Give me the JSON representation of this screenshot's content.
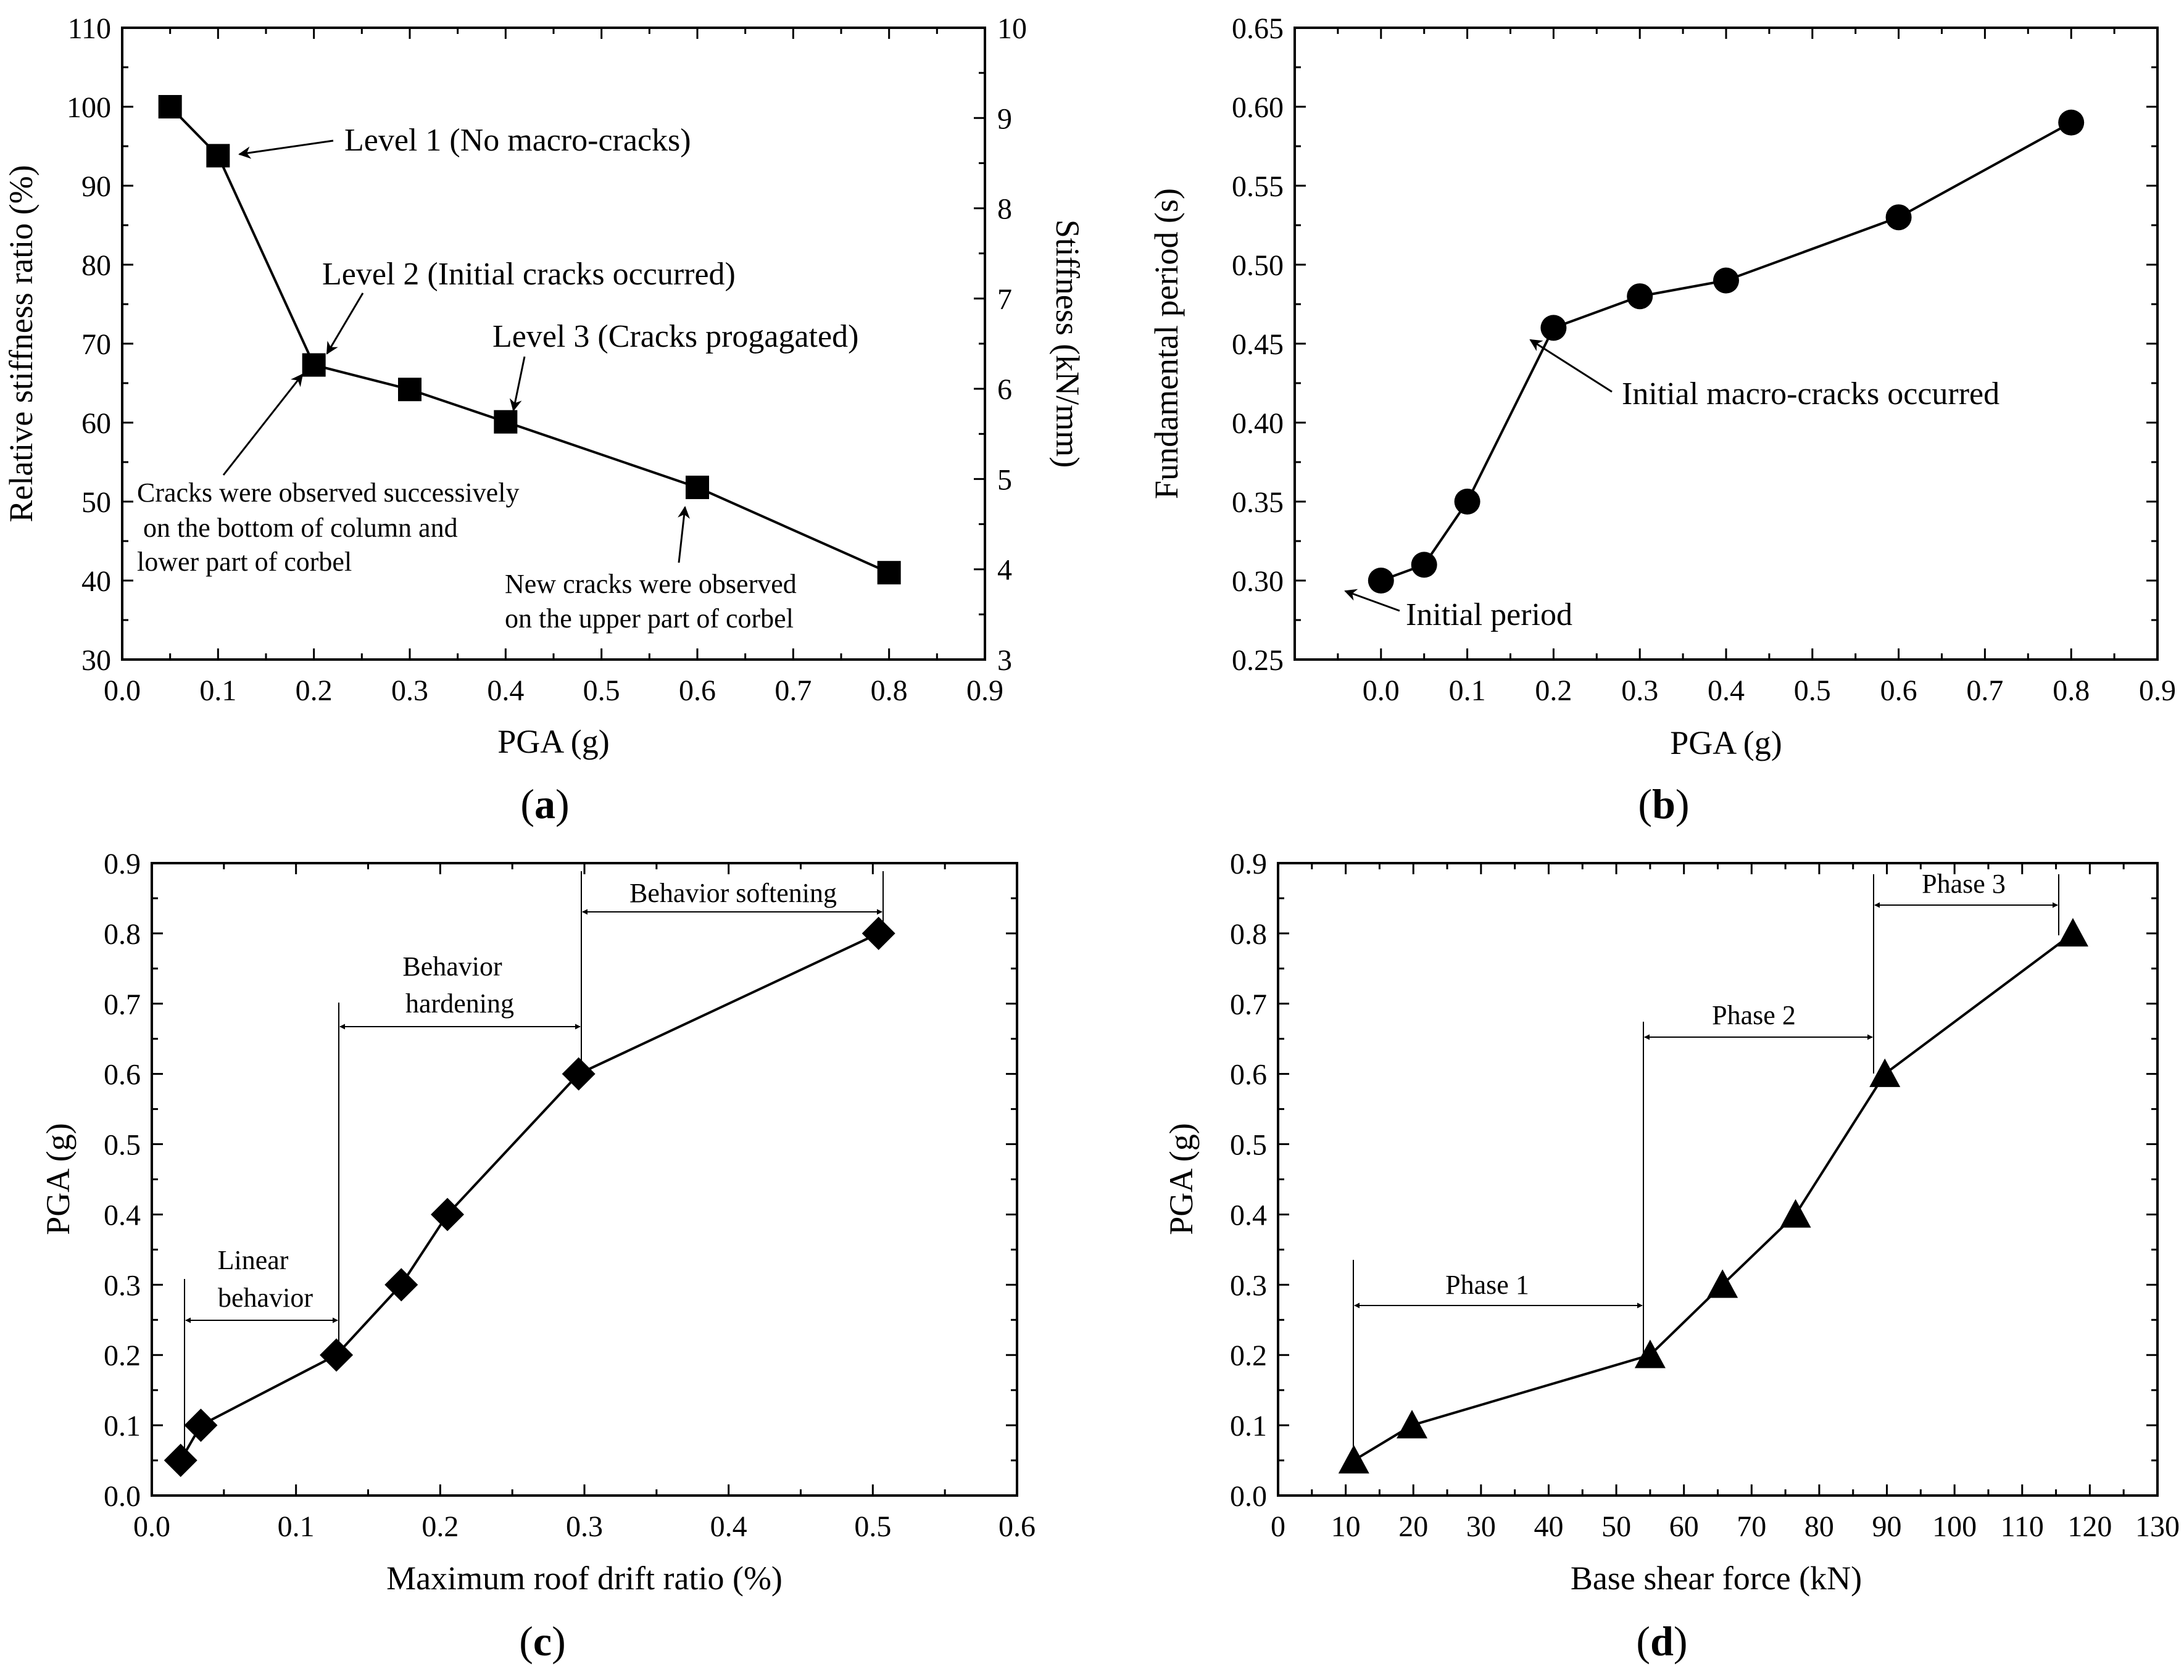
{
  "chart_data": [
    {
      "panel": "a",
      "type": "line",
      "xlabel": "PGA (g)",
      "ylabel": "Relative stiffness ratio (%)",
      "y2label": "Stiffness (kN/mm)",
      "xlim": [
        0.0,
        0.9
      ],
      "ylim": [
        30,
        110
      ],
      "y2lim": [
        3,
        10
      ],
      "xticks": [
        "0.0",
        "0.1",
        "0.2",
        "0.3",
        "0.4",
        "0.5",
        "0.6",
        "0.7",
        "0.8",
        "0.9"
      ],
      "yticks": [
        "30",
        "40",
        "50",
        "60",
        "70",
        "80",
        "90",
        "100",
        "110"
      ],
      "y2ticks": [
        "3",
        "4",
        "5",
        "6",
        "7",
        "8",
        "9",
        "10"
      ],
      "marker": "square",
      "x": [
        0.05,
        0.1,
        0.2,
        0.3,
        0.4,
        0.6,
        0.8
      ],
      "values": [
        100,
        93.8,
        67.3,
        64.2,
        60.1,
        51.8,
        41.0
      ],
      "annotations": {
        "level1": "Level 1 (No macro-cracks)",
        "level2": "Level 2 (Initial cracks occurred)",
        "level3": "Level 3 (Cracks progagated)",
        "cracks_bottom_1": "Cracks were observed successively",
        "cracks_bottom_2": "on the bottom of column and",
        "cracks_bottom_3": "lower part of corbel",
        "new_cracks_1": "New cracks were observed",
        "new_cracks_2": "on the upper part of corbel"
      },
      "panel_label": "a"
    },
    {
      "panel": "b",
      "type": "line",
      "xlabel": "PGA (g)",
      "ylabel": "Fundamental period (s)",
      "xlim": [
        -0.1,
        0.9
      ],
      "ylim": [
        0.25,
        0.65
      ],
      "xticks": [
        "0.0",
        "0.1",
        "0.2",
        "0.3",
        "0.4",
        "0.5",
        "0.6",
        "0.7",
        "0.8",
        "0.9"
      ],
      "yticks": [
        "0.25",
        "0.30",
        "0.35",
        "0.40",
        "0.45",
        "0.50",
        "0.55",
        "0.60",
        "0.65"
      ],
      "marker": "circle",
      "x": [
        0.0,
        0.05,
        0.1,
        0.2,
        0.3,
        0.4,
        0.6,
        0.8
      ],
      "values": [
        0.3,
        0.31,
        0.35,
        0.46,
        0.48,
        0.49,
        0.53,
        0.59
      ],
      "annotations": {
        "initial_macro": "Initial macro-cracks occurred",
        "initial_period": "Initial period"
      },
      "panel_label": "b"
    },
    {
      "panel": "c",
      "type": "line",
      "xlabel": "Maximum roof drift ratio (%)",
      "ylabel": "PGA (g)",
      "xlim": [
        0.0,
        0.6
      ],
      "ylim": [
        0.0,
        0.9
      ],
      "xticks": [
        "0.0",
        "0.1",
        "0.2",
        "0.3",
        "0.4",
        "0.5",
        "0.6"
      ],
      "yticks": [
        "0.0",
        "0.1",
        "0.2",
        "0.3",
        "0.4",
        "0.5",
        "0.6",
        "0.7",
        "0.8",
        "0.9"
      ],
      "marker": "diamond",
      "x": [
        0.02,
        0.034,
        0.128,
        0.173,
        0.205,
        0.296,
        0.504
      ],
      "values": [
        0.05,
        0.1,
        0.2,
        0.3,
        0.4,
        0.6,
        0.8
      ],
      "annotations": {
        "linear_1": "Linear",
        "linear_2": "behavior",
        "hardening_1": "Behavior",
        "hardening_2": "hardening",
        "softening": "Behavior softening"
      },
      "panel_label": "c"
    },
    {
      "panel": "d",
      "type": "line",
      "xlabel": "Base shear force (kN)",
      "ylabel": "PGA (g)",
      "xlim": [
        0,
        130
      ],
      "ylim": [
        0.0,
        0.9
      ],
      "xticks": [
        "0",
        "10",
        "20",
        "30",
        "40",
        "50",
        "60",
        "70",
        "80",
        "90",
        "100",
        "110",
        "120",
        "130"
      ],
      "yticks": [
        "0.0",
        "0.1",
        "0.2",
        "0.3",
        "0.4",
        "0.5",
        "0.6",
        "0.7",
        "0.8",
        "0.9"
      ],
      "marker": "triangle",
      "x": [
        11.2,
        19.8,
        55.0,
        65.7,
        76.5,
        89.7,
        117.5
      ],
      "values": [
        0.05,
        0.1,
        0.2,
        0.3,
        0.4,
        0.6,
        0.8
      ],
      "annotations": {
        "phase1": "Phase 1",
        "phase2": "Phase 2",
        "phase3": "Phase 3"
      },
      "panel_label": "d"
    }
  ]
}
